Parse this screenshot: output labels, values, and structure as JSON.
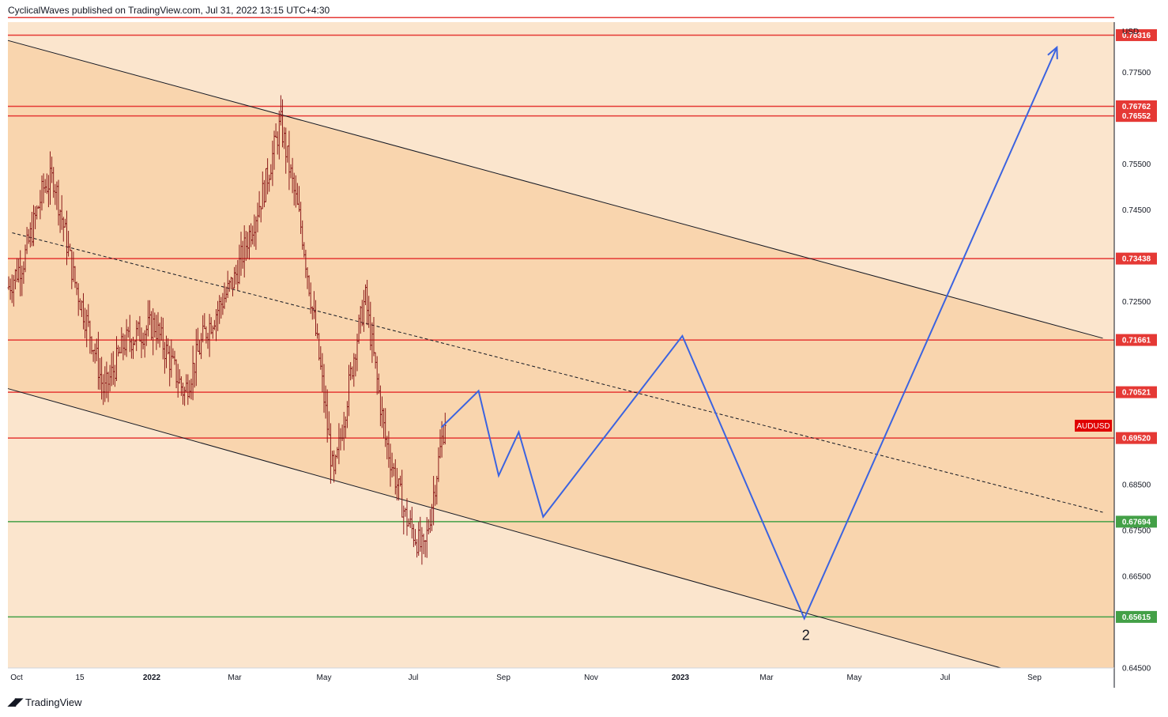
{
  "header": {
    "publish_text": "CyclicalWaves published on TradingView.com, Jul 31, 2022 13:15 UTC+4:30"
  },
  "footer": {
    "brand": "TradingView",
    "logo_icon": "tradingview-logo-icon"
  },
  "symbol_badge": "AUDUSD",
  "currency_label": "USD",
  "colors": {
    "background_light": "#fbe5cd",
    "channel_fill": "#f9d5ae",
    "resistance_line": "#e53935",
    "support_line": "#43a047",
    "projection_line": "#3b63e0",
    "candle": "#8b1a1a"
  },
  "chart_data": {
    "type": "line",
    "symbol": "AUDUSD",
    "ylim": [
      0.645,
      0.786
    ],
    "y_ticks": [
      "0.77500",
      "0.75500",
      "0.74500",
      "0.72500",
      "0.68500",
      "0.67500",
      "0.66500",
      "0.64500"
    ],
    "x_ticks": [
      "Oct",
      "15",
      "2022",
      "Mar",
      "May",
      "Jul",
      "Sep",
      "Nov",
      "2023",
      "Mar",
      "May",
      "Jul",
      "Sep"
    ],
    "x_ticks_bold": [
      "2022",
      "2023"
    ],
    "horizontal_levels": [
      {
        "value": 0.787,
        "label": "",
        "kind": "resistance"
      },
      {
        "value": 0.78316,
        "label": "0.78316",
        "kind": "resistance"
      },
      {
        "value": 0.76762,
        "label": "0.76762",
        "kind": "resistance"
      },
      {
        "value": 0.76552,
        "label": "0.76552",
        "kind": "resistance"
      },
      {
        "value": 0.73438,
        "label": "0.73438",
        "kind": "resistance"
      },
      {
        "value": 0.71661,
        "label": "0.71661",
        "kind": "resistance"
      },
      {
        "value": 0.70521,
        "label": "0.70521",
        "kind": "resistance"
      },
      {
        "value": 0.6952,
        "label": "0.69520",
        "kind": "resistance"
      },
      {
        "value": 0.67694,
        "label": "0.67694",
        "kind": "support"
      },
      {
        "value": 0.65615,
        "label": "0.65615",
        "kind": "support"
      }
    ],
    "channel": {
      "upper": [
        {
          "x": "2021-09-27",
          "y": 0.782
        },
        {
          "x": "2023-10-30",
          "y": 0.717
        }
      ],
      "mid": [
        {
          "x": "2021-09-30",
          "y": 0.74
        },
        {
          "x": "2023-10-30",
          "y": 0.679
        }
      ],
      "lower": [
        {
          "x": "2021-09-27",
          "y": 0.706
        },
        {
          "x": "2023-08-20",
          "y": 0.645
        }
      ]
    },
    "projection": [
      {
        "x": "2022-07-26",
        "y": 0.6975
      },
      {
        "x": "2022-08-21",
        "y": 0.7055
      },
      {
        "x": "2022-09-04",
        "y": 0.687
      },
      {
        "x": "2022-09-18",
        "y": 0.6965
      },
      {
        "x": "2022-10-05",
        "y": 0.678
      },
      {
        "x": "2023-01-10",
        "y": 0.7175
      },
      {
        "x": "2023-04-05",
        "y": 0.6558
      },
      {
        "x": "2023-09-28",
        "y": 0.7805
      }
    ],
    "wave_label": "2",
    "price_series": [
      {
        "x": "2021-09-27",
        "y": 0.728
      },
      {
        "x": "2021-10-08",
        "y": 0.734
      },
      {
        "x": "2021-10-22",
        "y": 0.75
      },
      {
        "x": "2021-10-29",
        "y": 0.752
      },
      {
        "x": "2021-11-12",
        "y": 0.73
      },
      {
        "x": "2021-11-26",
        "y": 0.715
      },
      {
        "x": "2021-12-03",
        "y": 0.705
      },
      {
        "x": "2021-12-17",
        "y": 0.716
      },
      {
        "x": "2022-01-07",
        "y": 0.72
      },
      {
        "x": "2022-01-28",
        "y": 0.705
      },
      {
        "x": "2022-02-11",
        "y": 0.718
      },
      {
        "x": "2022-03-04",
        "y": 0.73
      },
      {
        "x": "2022-03-25",
        "y": 0.75
      },
      {
        "x": "2022-04-05",
        "y": 0.764
      },
      {
        "x": "2022-04-20",
        "y": 0.74
      },
      {
        "x": "2022-05-03",
        "y": 0.71
      },
      {
        "x": "2022-05-12",
        "y": 0.686
      },
      {
        "x": "2022-05-27",
        "y": 0.715
      },
      {
        "x": "2022-06-03",
        "y": 0.726
      },
      {
        "x": "2022-06-17",
        "y": 0.695
      },
      {
        "x": "2022-07-01",
        "y": 0.678
      },
      {
        "x": "2022-07-14",
        "y": 0.67
      },
      {
        "x": "2022-07-29",
        "y": 0.7
      }
    ]
  }
}
